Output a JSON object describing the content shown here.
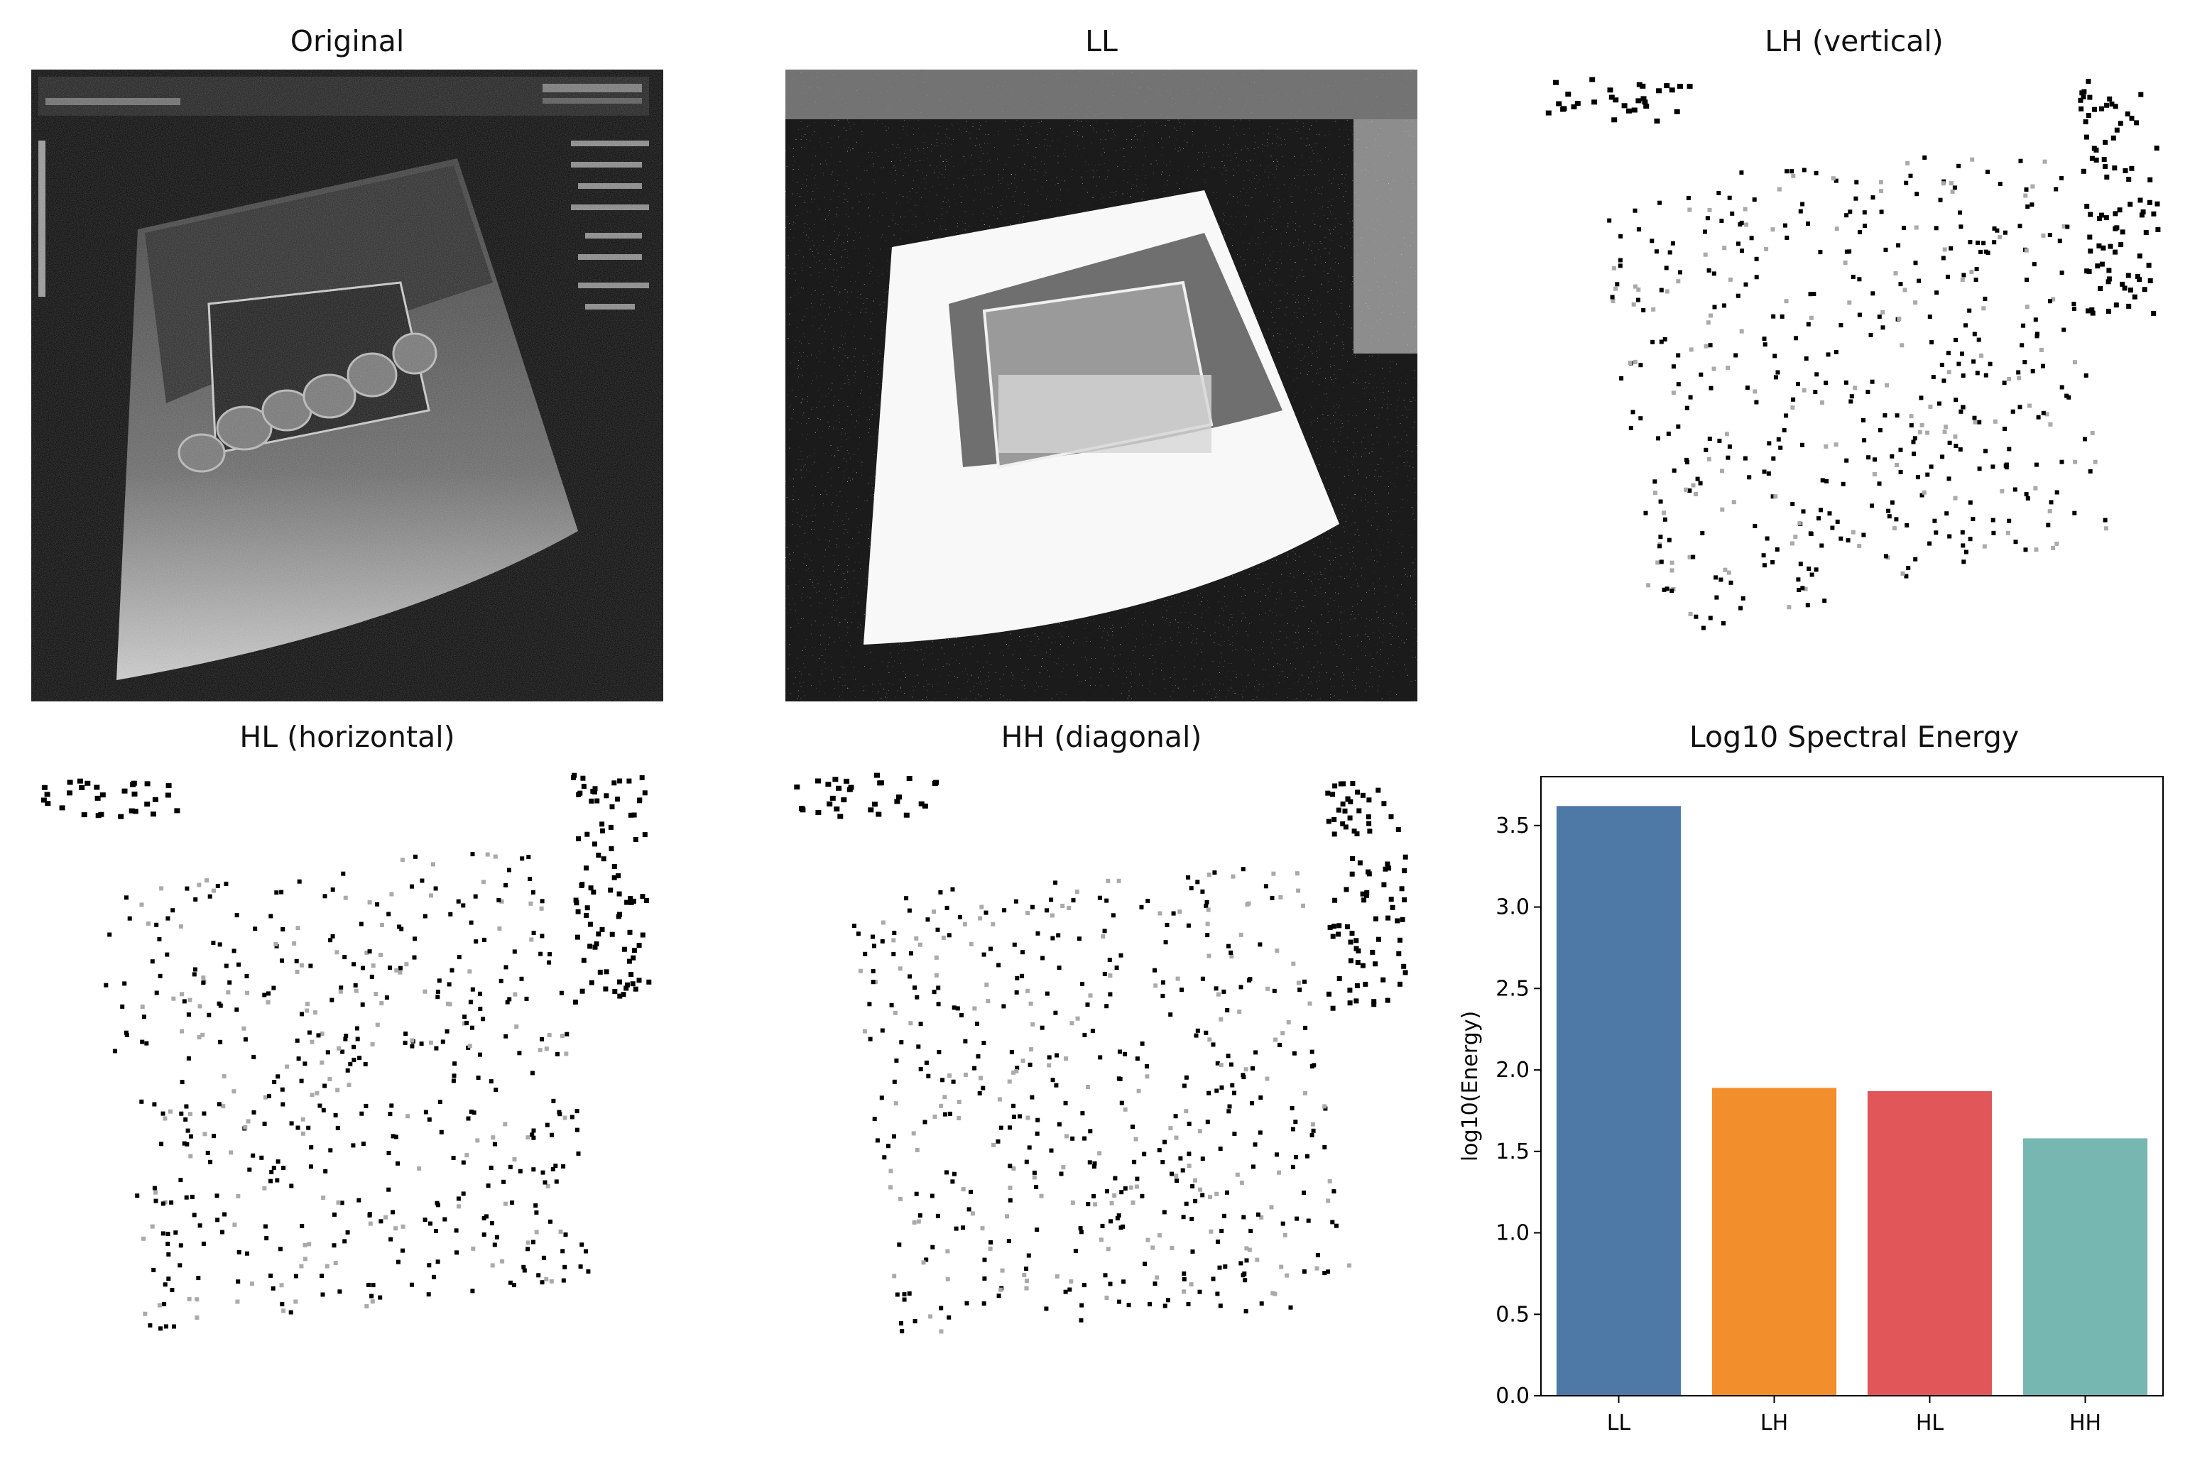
{
  "panels": [
    {
      "title": "Original"
    },
    {
      "title": "LL"
    },
    {
      "title": "LH (vertical)"
    },
    {
      "title": "HL (horizontal)"
    },
    {
      "title": "HH (diagonal)"
    }
  ],
  "chart_data": {
    "type": "bar",
    "title": "Log10 Spectral Energy",
    "xlabel": "",
    "ylabel": "log10(Energy)",
    "categories": [
      "LL",
      "LH",
      "HL",
      "HH"
    ],
    "values": [
      3.62,
      1.89,
      1.87,
      1.58
    ],
    "colors": [
      "#4e79a7",
      "#f28e2b",
      "#e15759",
      "#76b7b2"
    ],
    "ylim": [
      0,
      3.8
    ],
    "yticks": [
      "0.0",
      "0.5",
      "1.0",
      "1.5",
      "2.0",
      "2.5",
      "3.0",
      "3.5"
    ],
    "grid": false
  }
}
